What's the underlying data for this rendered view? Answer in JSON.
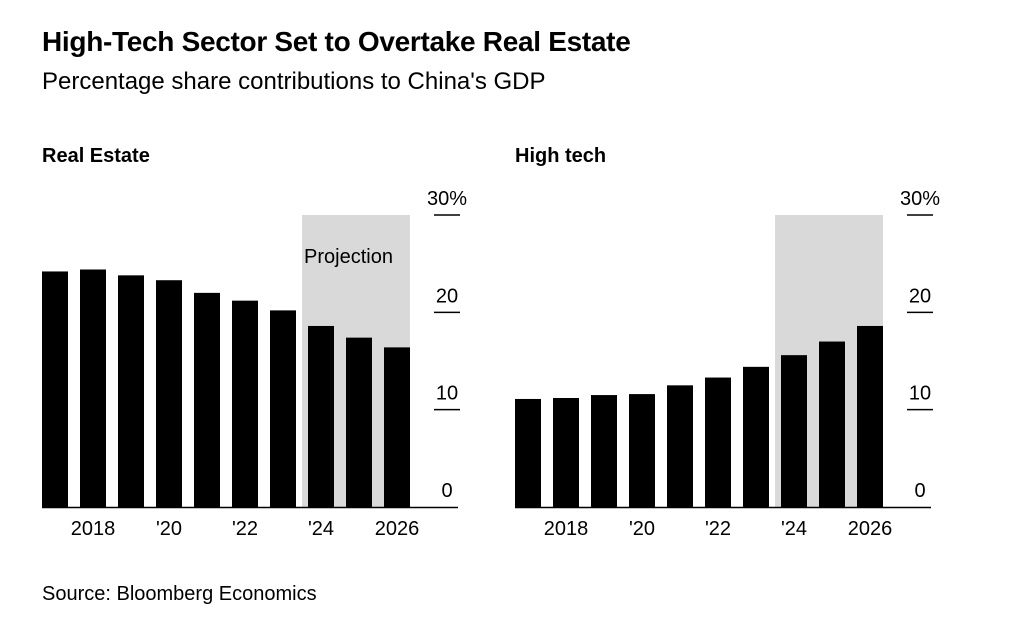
{
  "header": {
    "title": "High-Tech Sector Set to Overtake Real Estate",
    "subtitle": "Percentage share contributions to China's GDP"
  },
  "footer": {
    "source": "Source: Bloomberg Economics"
  },
  "colors": {
    "bar": "#000000",
    "projection_shade": "#d9d9d9",
    "background": "#ffffff",
    "text": "#000000"
  },
  "chart_data": [
    {
      "type": "bar",
      "title": "Real Estate",
      "x": [
        2017,
        2018,
        2019,
        2020,
        2021,
        2022,
        2023,
        2024,
        2025,
        2026
      ],
      "values": [
        24.2,
        24.4,
        23.8,
        23.3,
        22.0,
        21.2,
        20.2,
        18.6,
        17.4,
        16.4
      ],
      "x_tick_labels": [
        {
          "x": 2018,
          "label": "2018"
        },
        {
          "x": 2020,
          "label": "'20"
        },
        {
          "x": 2022,
          "label": "'22"
        },
        {
          "x": 2024,
          "label": "'24"
        },
        {
          "x": 2026,
          "label": "2026"
        }
      ],
      "y_ticks": [
        {
          "value": 0,
          "label": "0"
        },
        {
          "value": 10,
          "label": "10"
        },
        {
          "value": 20,
          "label": "20"
        },
        {
          "value": 30,
          "label": "30%"
        }
      ],
      "ylim": [
        0,
        30
      ],
      "projection": {
        "start": 2024,
        "end": 2026,
        "label": "Projection"
      },
      "xlabel": "",
      "ylabel": ""
    },
    {
      "type": "bar",
      "title": "High tech",
      "x": [
        2017,
        2018,
        2019,
        2020,
        2021,
        2022,
        2023,
        2024,
        2025,
        2026
      ],
      "values": [
        11.1,
        11.2,
        11.5,
        11.6,
        12.5,
        13.3,
        14.4,
        15.6,
        17.0,
        18.6
      ],
      "x_tick_labels": [
        {
          "x": 2018,
          "label": "2018"
        },
        {
          "x": 2020,
          "label": "'20"
        },
        {
          "x": 2022,
          "label": "'22"
        },
        {
          "x": 2024,
          "label": "'24"
        },
        {
          "x": 2026,
          "label": "2026"
        }
      ],
      "y_ticks": [
        {
          "value": 0,
          "label": "0"
        },
        {
          "value": 10,
          "label": "10"
        },
        {
          "value": 20,
          "label": "20"
        },
        {
          "value": 30,
          "label": "30%"
        }
      ],
      "ylim": [
        0,
        30
      ],
      "projection": {
        "start": 2024,
        "end": 2026,
        "label": ""
      },
      "xlabel": "",
      "ylabel": ""
    }
  ]
}
